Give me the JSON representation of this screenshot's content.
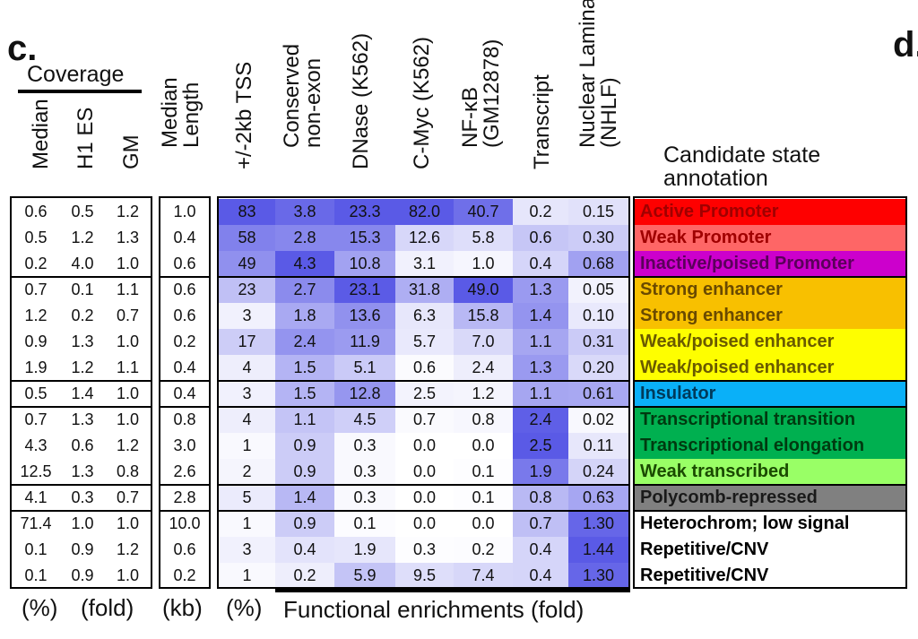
{
  "panels": {
    "left": "c.",
    "right": "d."
  },
  "coverage_title": "Coverage",
  "headers": {
    "median": "Median",
    "h1": "H1 ES",
    "gm": "GM",
    "length": "Median Length",
    "tss": "+/-2kb TSS",
    "conserved": "Conserved non-exon",
    "dnase": "DNase (K562)",
    "cmyc": "C-Myc (K562)",
    "nfkb": "NF-κB (GM12878)",
    "transcript": "Transcript",
    "lamina": "Nuclear Lamina (NHLF)",
    "annotation": "Candidate state annotation"
  },
  "units": {
    "coverage": "(%)",
    "fold": "(fold)",
    "kb": "(kb)",
    "tss": "(%)",
    "enrich": "Functional enrichments (fold)"
  },
  "colors": {
    "heat_max": "#5a5ae6",
    "separator": "#000000"
  },
  "rows": [
    {
      "median": "0.6",
      "h1": "0.5",
      "gm": "1.2",
      "length": "1.0",
      "tss": "83",
      "conserved": "3.8",
      "dnase": "23.3",
      "cmyc": "82.0",
      "nfkb": "40.7",
      "transcript": "0.2",
      "lamina": "0.15",
      "label": "Active Promoter",
      "color": "#fe0000",
      "text_color": "#a00000"
    },
    {
      "median": "0.5",
      "h1": "1.2",
      "gm": "1.3",
      "length": "0.4",
      "tss": "58",
      "conserved": "2.8",
      "dnase": "15.3",
      "cmyc": "12.6",
      "nfkb": "5.8",
      "transcript": "0.6",
      "lamina": "0.30",
      "label": "Weak Promoter",
      "color": "#fe6666",
      "text_color": "#a00000"
    },
    {
      "median": "0.2",
      "h1": "4.0",
      "gm": "1.0",
      "length": "0.6",
      "tss": "49",
      "conserved": "4.3",
      "dnase": "10.8",
      "cmyc": "3.1",
      "nfkb": "1.0",
      "transcript": "0.4",
      "lamina": "0.68",
      "label": "Inactive/poised Promoter",
      "color": "#cc00cc",
      "text_color": "#5a005a"
    },
    {
      "median": "0.7",
      "h1": "0.1",
      "gm": "1.1",
      "length": "0.6",
      "tss": "23",
      "conserved": "2.7",
      "dnase": "23.1",
      "cmyc": "31.8",
      "nfkb": "49.0",
      "transcript": "1.3",
      "lamina": "0.05",
      "label": "Strong enhancer",
      "color": "#f8c000",
      "text_color": "#6a4a00"
    },
    {
      "median": "1.2",
      "h1": "0.2",
      "gm": "0.7",
      "length": "0.6",
      "tss": "3",
      "conserved": "1.8",
      "dnase": "13.6",
      "cmyc": "6.3",
      "nfkb": "15.8",
      "transcript": "1.4",
      "lamina": "0.10",
      "label": "Strong enhancer",
      "color": "#f8c000",
      "text_color": "#6a4a00"
    },
    {
      "median": "0.9",
      "h1": "1.3",
      "gm": "1.0",
      "length": "0.2",
      "tss": "17",
      "conserved": "2.4",
      "dnase": "11.9",
      "cmyc": "5.7",
      "nfkb": "7.0",
      "transcript": "1.1",
      "lamina": "0.31",
      "label": "Weak/poised enhancer",
      "color": "#fefe00",
      "text_color": "#6a5a00"
    },
    {
      "median": "1.9",
      "h1": "1.2",
      "gm": "1.1",
      "length": "0.4",
      "tss": "4",
      "conserved": "1.5",
      "dnase": "5.1",
      "cmyc": "0.6",
      "nfkb": "2.4",
      "transcript": "1.3",
      "lamina": "0.20",
      "label": "Weak/poised enhancer",
      "color": "#fefe00",
      "text_color": "#6a5a00"
    },
    {
      "median": "0.5",
      "h1": "1.4",
      "gm": "1.0",
      "length": "0.4",
      "tss": "3",
      "conserved": "1.5",
      "dnase": "12.8",
      "cmyc": "2.5",
      "nfkb": "1.2",
      "transcript": "1.1",
      "lamina": "0.61",
      "label": "Insulator",
      "color": "#0ab0f8",
      "text_color": "#003a5a"
    },
    {
      "median": "0.7",
      "h1": "1.3",
      "gm": "1.0",
      "length": "0.8",
      "tss": "4",
      "conserved": "1.1",
      "dnase": "4.5",
      "cmyc": "0.7",
      "nfkb": "0.8",
      "transcript": "2.4",
      "lamina": "0.02",
      "label": "Transcriptional transition",
      "color": "#00b050",
      "text_color": "#003a10"
    },
    {
      "median": "4.3",
      "h1": "0.6",
      "gm": "1.2",
      "length": "3.0",
      "tss": "1",
      "conserved": "0.9",
      "dnase": "0.3",
      "cmyc": "0.0",
      "nfkb": "0.0",
      "transcript": "2.5",
      "lamina": "0.11",
      "label": "Transcriptional elongation",
      "color": "#00b050",
      "text_color": "#003a10"
    },
    {
      "median": "12.5",
      "h1": "1.3",
      "gm": "0.8",
      "length": "2.6",
      "tss": "2",
      "conserved": "0.9",
      "dnase": "0.3",
      "cmyc": "0.0",
      "nfkb": "0.1",
      "transcript": "1.9",
      "lamina": "0.24",
      "label": "Weak transcribed",
      "color": "#99ff66",
      "text_color": "#1a4a00"
    },
    {
      "median": "4.1",
      "h1": "0.3",
      "gm": "0.7",
      "length": "2.8",
      "tss": "5",
      "conserved": "1.4",
      "dnase": "0.3",
      "cmyc": "0.0",
      "nfkb": "0.1",
      "transcript": "0.8",
      "lamina": "0.63",
      "label": "Polycomb-repressed",
      "color": "#808080",
      "text_color": "#1a1a1a"
    },
    {
      "median": "71.4",
      "h1": "1.0",
      "gm": "1.0",
      "length": "10.0",
      "tss": "1",
      "conserved": "0.9",
      "dnase": "0.1",
      "cmyc": "0.0",
      "nfkb": "0.0",
      "transcript": "0.7",
      "lamina": "1.30",
      "label": "Heterochrom; low signal",
      "color": "#ffffff",
      "text_color": "#000000"
    },
    {
      "median": "0.1",
      "h1": "0.9",
      "gm": "1.2",
      "length": "0.6",
      "tss": "3",
      "conserved": "0.4",
      "dnase": "1.9",
      "cmyc": "0.3",
      "nfkb": "0.2",
      "transcript": "0.4",
      "lamina": "1.44",
      "label": "Repetitive/CNV",
      "color": "#ffffff",
      "text_color": "#000000"
    },
    {
      "median": "0.1",
      "h1": "0.9",
      "gm": "1.0",
      "length": "0.2",
      "tss": "1",
      "conserved": "0.2",
      "dnase": "5.9",
      "cmyc": "9.5",
      "nfkb": "7.4",
      "transcript": "0.4",
      "lamina": "1.30",
      "label": "Repetitive/CNV",
      "color": "#ffffff",
      "text_color": "#000000"
    }
  ]
}
